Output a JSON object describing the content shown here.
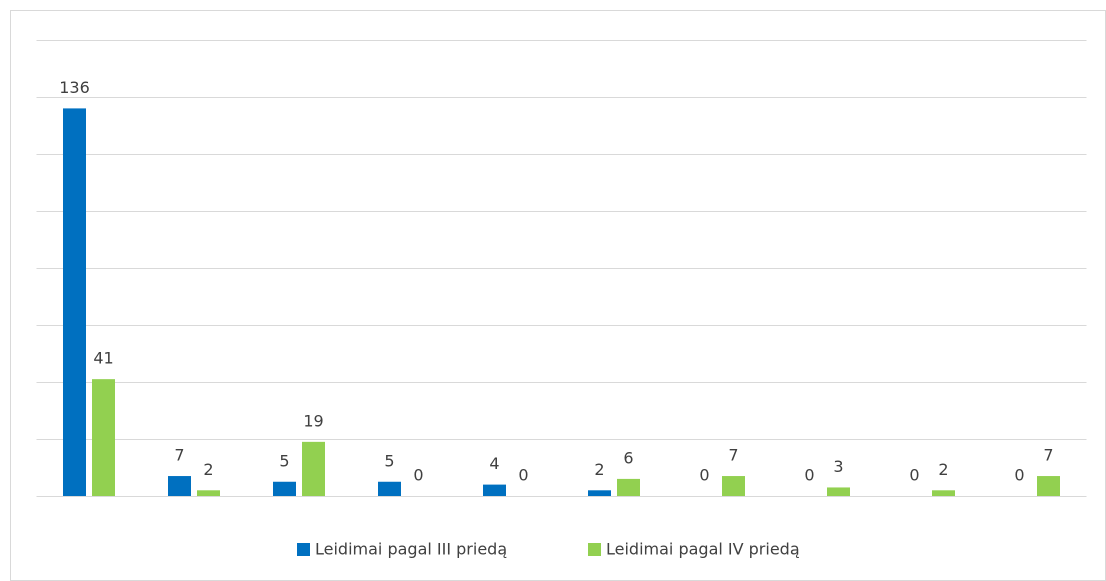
{
  "chart_data": {
    "type": "bar",
    "categories": [
      null,
      null,
      null,
      null,
      null,
      null,
      null,
      null,
      null,
      null
    ],
    "series": [
      {
        "name": "Leidimai pagal III priedą",
        "color": "#0070c0",
        "values": [
          136,
          7,
          5,
          5,
          4,
          2,
          0,
          0,
          0,
          0
        ]
      },
      {
        "name": "Leidimai pagal IV priedą",
        "color": "#92d050",
        "values": [
          41,
          2,
          19,
          0,
          0,
          6,
          7,
          3,
          2,
          7
        ]
      }
    ],
    "ylim": [
      0,
      160
    ],
    "yticks": [
      0,
      20,
      40,
      60,
      80,
      100,
      120,
      140,
      160
    ],
    "grid": true,
    "legend": "bottom"
  }
}
